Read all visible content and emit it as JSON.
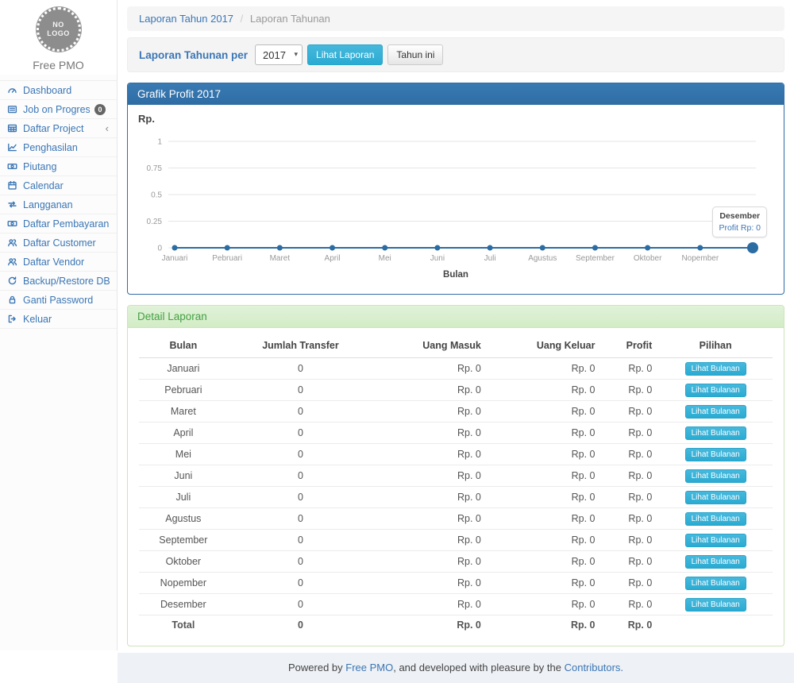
{
  "app": {
    "logo_text_line1": "NO",
    "logo_text_line2": "LOGO",
    "brand": "Free PMO"
  },
  "sidebar": {
    "items": [
      {
        "label": "Dashboard",
        "icon": "dashboard-icon"
      },
      {
        "label": "Job on Progress",
        "icon": "list-icon",
        "badge": "0"
      },
      {
        "label": "Daftar Project",
        "icon": "table-icon",
        "chevron": "‹"
      },
      {
        "label": "Penghasilan",
        "icon": "line-chart-icon"
      },
      {
        "label": "Piutang",
        "icon": "money-icon"
      },
      {
        "label": "Calendar",
        "icon": "calendar-icon"
      },
      {
        "label": "Langganan",
        "icon": "retweet-icon"
      },
      {
        "label": "Daftar Pembayaran",
        "icon": "money-icon"
      },
      {
        "label": "Daftar Customer",
        "icon": "users-icon"
      },
      {
        "label": "Daftar Vendor",
        "icon": "users-icon"
      },
      {
        "label": "Backup/Restore DB",
        "icon": "refresh-icon"
      },
      {
        "label": "Ganti Password",
        "icon": "lock-icon"
      },
      {
        "label": "Keluar",
        "icon": "sign-out-icon"
      }
    ]
  },
  "breadcrumb": {
    "link": "Laporan Tahun 2017",
    "separator": "/",
    "current": "Laporan Tahunan"
  },
  "filter_bar": {
    "label": "Laporan Tahunan per",
    "year_select": "2017",
    "view_button": "Lihat Laporan",
    "this_year_button": "Tahun ini"
  },
  "chart_panel": {
    "title": "Grafik Profit 2017"
  },
  "chart_data": {
    "type": "line",
    "title": "Grafik Profit 2017",
    "categories": [
      "Januari",
      "Pebruari",
      "Maret",
      "April",
      "Mei",
      "Juni",
      "Juli",
      "Agustus",
      "September",
      "Oktober",
      "Nopember",
      "Desember"
    ],
    "series": [
      {
        "name": "Profit",
        "values": [
          0,
          0,
          0,
          0,
          0,
          0,
          0,
          0,
          0,
          0,
          0,
          0
        ]
      }
    ],
    "xlabel": "Bulan",
    "ylabel": "Rp.",
    "ylim": [
      0,
      1
    ],
    "yticks": [
      0,
      0.25,
      0.5,
      0.75,
      1
    ],
    "grid": true,
    "legend": "none",
    "line_color": "#2b6ca3",
    "highlight": {
      "category": "Desember",
      "tooltip_title": "Desember",
      "tooltip_value": "Profit Rp: 0"
    }
  },
  "detail_panel": {
    "title": "Detail Laporan",
    "action_label": "Lihat Bulanan",
    "table": {
      "headers": [
        "Bulan",
        "Jumlah Transfer",
        "Uang Masuk",
        "Uang Keluar",
        "Profit",
        "Pilihan"
      ],
      "rows": [
        {
          "bulan": "Januari",
          "jumlah_transfer": "0",
          "uang_masuk": "Rp. 0",
          "uang_keluar": "Rp. 0",
          "profit": "Rp. 0"
        },
        {
          "bulan": "Pebruari",
          "jumlah_transfer": "0",
          "uang_masuk": "Rp. 0",
          "uang_keluar": "Rp. 0",
          "profit": "Rp. 0"
        },
        {
          "bulan": "Maret",
          "jumlah_transfer": "0",
          "uang_masuk": "Rp. 0",
          "uang_keluar": "Rp. 0",
          "profit": "Rp. 0"
        },
        {
          "bulan": "April",
          "jumlah_transfer": "0",
          "uang_masuk": "Rp. 0",
          "uang_keluar": "Rp. 0",
          "profit": "Rp. 0"
        },
        {
          "bulan": "Mei",
          "jumlah_transfer": "0",
          "uang_masuk": "Rp. 0",
          "uang_keluar": "Rp. 0",
          "profit": "Rp. 0"
        },
        {
          "bulan": "Juni",
          "jumlah_transfer": "0",
          "uang_masuk": "Rp. 0",
          "uang_keluar": "Rp. 0",
          "profit": "Rp. 0"
        },
        {
          "bulan": "Juli",
          "jumlah_transfer": "0",
          "uang_masuk": "Rp. 0",
          "uang_keluar": "Rp. 0",
          "profit": "Rp. 0"
        },
        {
          "bulan": "Agustus",
          "jumlah_transfer": "0",
          "uang_masuk": "Rp. 0",
          "uang_keluar": "Rp. 0",
          "profit": "Rp. 0"
        },
        {
          "bulan": "September",
          "jumlah_transfer": "0",
          "uang_masuk": "Rp. 0",
          "uang_keluar": "Rp. 0",
          "profit": "Rp. 0"
        },
        {
          "bulan": "Oktober",
          "jumlah_transfer": "0",
          "uang_masuk": "Rp. 0",
          "uang_keluar": "Rp. 0",
          "profit": "Rp. 0"
        },
        {
          "bulan": "Nopember",
          "jumlah_transfer": "0",
          "uang_masuk": "Rp. 0",
          "uang_keluar": "Rp. 0",
          "profit": "Rp. 0"
        },
        {
          "bulan": "Desember",
          "jumlah_transfer": "0",
          "uang_masuk": "Rp. 0",
          "uang_keluar": "Rp. 0",
          "profit": "Rp. 0"
        }
      ],
      "total_row": {
        "bulan": "Total",
        "jumlah_transfer": "0",
        "uang_masuk": "Rp. 0",
        "uang_keluar": "Rp. 0",
        "profit": "Rp. 0"
      }
    }
  },
  "footer": {
    "text_prefix": "Powered by ",
    "link1": "Free PMO",
    "text_middle": ", and developed with pleasure by the ",
    "link2": "Contributors."
  },
  "colors": {
    "accent_blue": "#3b76b5",
    "panel_primary_header": "#2e6da4",
    "panel_success_bg": "#dff0d8",
    "panel_success_text": "#45a045",
    "info_button": "#31b0d5",
    "badge_bg": "#666666",
    "chart_line": "#2b6ca3"
  }
}
